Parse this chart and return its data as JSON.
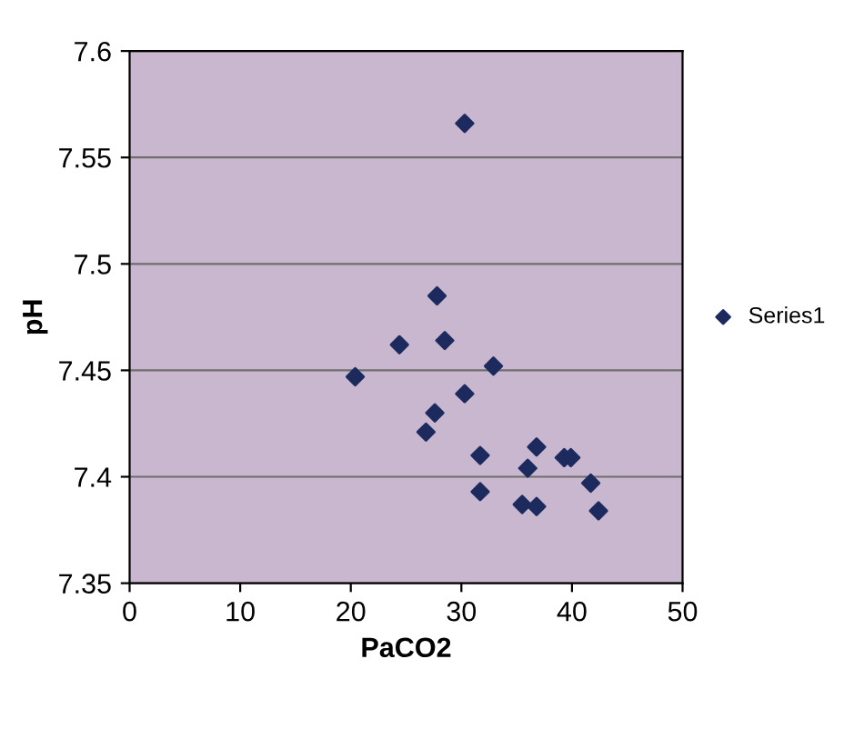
{
  "chart_data": {
    "type": "scatter",
    "xlabel": "PaCO2",
    "ylabel": "pH",
    "series": [
      {
        "name": "Series1",
        "color": "#1c2a5e",
        "x": [
          20.4,
          24.4,
          26.8,
          27.6,
          27.8,
          28.5,
          30.3,
          30.3,
          31.7,
          31.7,
          32.9,
          35.5,
          36.0,
          36.8,
          36.8,
          39.3,
          39.9,
          41.7,
          42.4
        ],
        "values": [
          7.447,
          7.462,
          7.421,
          7.43,
          7.485,
          7.464,
          7.566,
          7.439,
          7.41,
          7.393,
          7.452,
          7.387,
          7.404,
          7.414,
          7.386,
          7.409,
          7.409,
          7.397,
          7.384
        ]
      }
    ],
    "xlim": [
      0,
      50
    ],
    "ylim": [
      7.35,
      7.6
    ],
    "xticks": [
      0,
      10,
      20,
      30,
      40,
      50
    ],
    "yticks": [
      7.35,
      7.4,
      7.45,
      7.5,
      7.55,
      7.6
    ],
    "grid": "y",
    "legend": "right",
    "marker": "diamond"
  }
}
